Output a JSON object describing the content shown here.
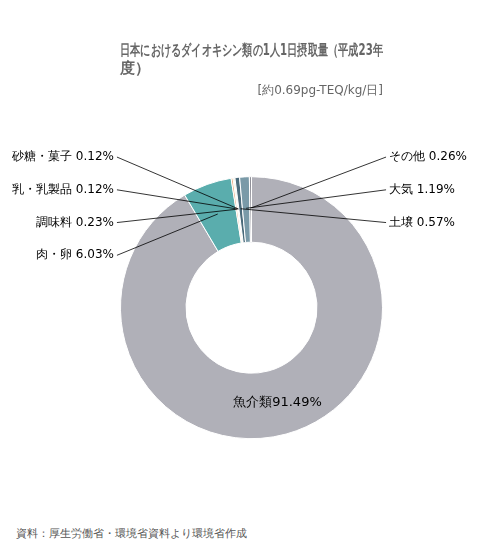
{
  "chart_data": {
    "type": "doughnut",
    "title": "日本におけるダイオキシン類の1人1日摂取量（平成23年\n度）",
    "subtitle": "[約0.69pg-TEQ/kg/日]",
    "annotations": [
      "資料：厚生労働省・環境省資料より環境省作成"
    ],
    "categories": [
      "魚介類91.49%",
      "肉・卵 6.03%",
      "調味料 0.23%",
      "乳・乳製品 0.12%",
      "砂糖・菓子 0.12%",
      "土壌 0.57%",
      "大気 1.19%",
      "その他 0.26%"
    ],
    "values": [
      91.49,
      6.03,
      0.23,
      0.12,
      0.12,
      0.57,
      1.19,
      0.26
    ],
    "colors": [
      "#b0b0b8",
      "#5aadad",
      "#e8a87c",
      "#c8c060",
      "#a8b8a0",
      "#4a6a7a",
      "#7a9aa8",
      "#909098"
    ]
  }
}
